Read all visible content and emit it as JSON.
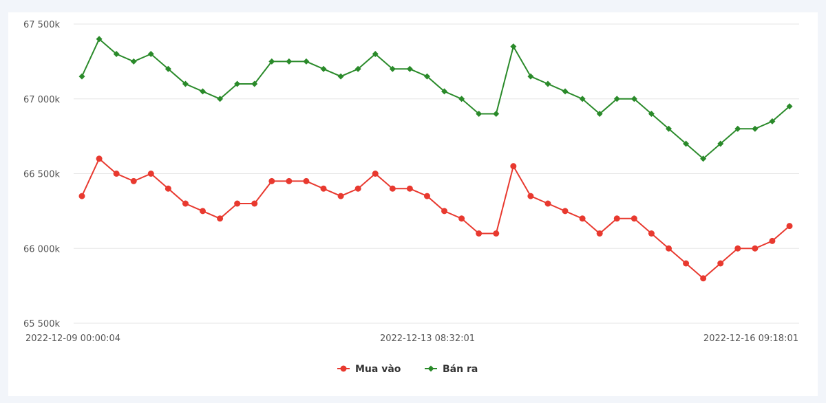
{
  "chart_data": {
    "type": "line",
    "x_tick_labels": [
      "2022-12-09 00:00:04",
      "2022-12-13 08:32:01",
      "2022-12-16 09:18:01"
    ],
    "y_tick_labels": [
      "67 500k",
      "67 000k",
      "66 500k",
      "66 000k",
      "65 500k"
    ],
    "y_ticks": [
      67500,
      67000,
      66500,
      66000,
      65500
    ],
    "ylim": [
      65500,
      67500
    ],
    "grid": true,
    "legend_position": "bottom-center",
    "series": [
      {
        "name": "Mua vào",
        "color": "#e8392f",
        "marker": "circle",
        "values": [
          66350,
          66600,
          66500,
          66450,
          66500,
          66400,
          66300,
          66250,
          66200,
          66300,
          66300,
          66450,
          66450,
          66450,
          66400,
          66350,
          66400,
          66500,
          66400,
          66400,
          66350,
          66250,
          66200,
          66100,
          66100,
          66550,
          66350,
          66300,
          66250,
          66200,
          66100,
          66200,
          66200,
          66100,
          66000,
          65900,
          65800,
          65900,
          66000,
          66000,
          66050,
          66150
        ]
      },
      {
        "name": "Bán ra",
        "color": "#2a8a2a",
        "marker": "diamond",
        "values": [
          67150,
          67400,
          67300,
          67250,
          67300,
          67200,
          67100,
          67050,
          67000,
          67100,
          67100,
          67250,
          67250,
          67250,
          67200,
          67150,
          67200,
          67300,
          67200,
          67200,
          67150,
          67050,
          67000,
          66900,
          66900,
          67350,
          67150,
          67100,
          67050,
          67000,
          66900,
          67000,
          67000,
          66900,
          66800,
          66700,
          66600,
          66700,
          66800,
          66800,
          66850,
          66950
        ]
      }
    ]
  }
}
